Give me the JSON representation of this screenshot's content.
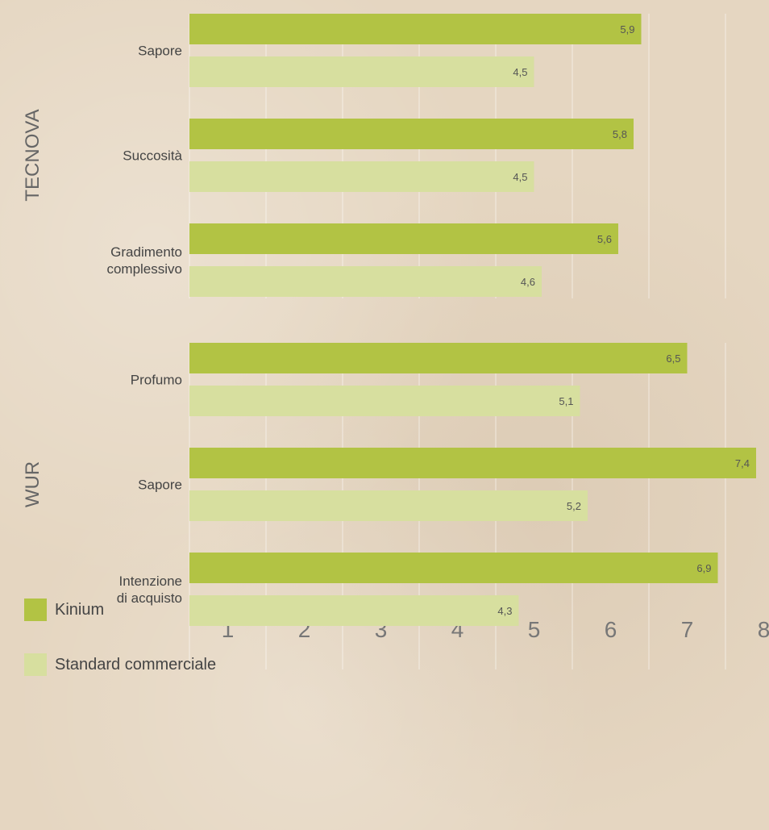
{
  "chart_data": {
    "type": "bar",
    "orientation": "horizontal",
    "groups": [
      "TECNOVA",
      "WUR"
    ],
    "categories": [
      "Sapore",
      "Succosità",
      "Gradimento\ncomplessivo",
      "Profumo",
      "Sapore",
      "Intenzione\ndi acquisto"
    ],
    "series": [
      {
        "name": "Kinium",
        "color": "#b2c344",
        "values": [
          5.9,
          5.8,
          5.6,
          6.5,
          7.4,
          6.9
        ],
        "value_labels": [
          "5,9",
          "5,8",
          "5,6",
          "6,5",
          "7,4",
          "6,9"
        ]
      },
      {
        "name": "Standard commerciale",
        "color": "#d7df9f",
        "values": [
          4.5,
          4.5,
          4.6,
          5.1,
          5.2,
          4.3
        ],
        "value_labels": [
          "4,5",
          "4,5",
          "4,6",
          "5,1",
          "5,2",
          "4,3"
        ]
      }
    ],
    "xlim": [
      0,
      8
    ],
    "xticks": [
      1,
      2,
      3,
      4,
      5,
      6,
      7,
      8
    ],
    "grid": true,
    "legend": "bottom-left"
  }
}
